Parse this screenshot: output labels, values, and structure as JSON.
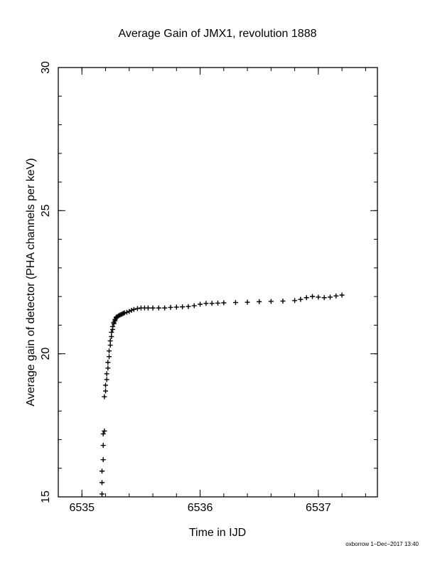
{
  "chart_data": {
    "type": "scatter",
    "title": "Average Gain of JMX1, revolution 1888",
    "xlabel": "Time in IJD",
    "ylabel": "Average gain of detector (PHA channels per keV)",
    "xlim": [
      6534.8,
      6537.5
    ],
    "ylim": [
      15,
      30
    ],
    "xticks": [
      6535,
      6536,
      6537
    ],
    "yticks": [
      15,
      20,
      25,
      30
    ],
    "x_minor_step": 0.2,
    "y_minor_step": 1,
    "grid": false,
    "marker": "plus",
    "series": [
      {
        "x": [
          6535.17,
          6535.17,
          6535.17,
          6535.18,
          6535.18,
          6535.18,
          6535.19,
          6535.19,
          6535.2,
          6535.2,
          6535.21,
          6535.21,
          6535.22,
          6535.22,
          6535.23,
          6535.23,
          6535.24,
          6535.24,
          6535.25,
          6535.25,
          6535.26,
          6535.26,
          6535.27,
          6535.27,
          6535.28,
          6535.28,
          6535.29,
          6535.29,
          6535.3,
          6535.31,
          6535.32,
          6535.33,
          6535.34,
          6535.35,
          6535.36,
          6535.38,
          6535.4,
          6535.42,
          6535.44,
          6535.47,
          6535.5,
          6535.53,
          6535.56,
          6535.6,
          6535.65,
          6535.7,
          6535.75,
          6535.8,
          6535.85,
          6535.9,
          6535.95,
          6536.0,
          6536.05,
          6536.1,
          6536.15,
          6536.2,
          6536.3,
          6536.4,
          6536.5,
          6536.6,
          6536.7,
          6536.8,
          6536.85,
          6536.9,
          6536.95,
          6537.0,
          6537.05,
          6537.1,
          6537.15,
          6537.2
        ],
        "y": [
          15.1,
          15.5,
          15.9,
          16.3,
          16.8,
          17.2,
          17.3,
          18.5,
          18.7,
          18.9,
          19.1,
          19.3,
          19.5,
          19.7,
          19.9,
          20.1,
          20.3,
          20.45,
          20.6,
          20.75,
          20.85,
          20.95,
          21.05,
          21.1,
          21.15,
          21.2,
          21.25,
          21.28,
          21.3,
          21.33,
          21.35,
          21.37,
          21.39,
          21.41,
          21.43,
          21.45,
          21.48,
          21.52,
          21.55,
          21.58,
          21.6,
          21.6,
          21.6,
          21.6,
          21.6,
          21.6,
          21.62,
          21.63,
          21.64,
          21.65,
          21.68,
          21.73,
          21.76,
          21.76,
          21.77,
          21.78,
          21.79,
          21.8,
          21.82,
          21.83,
          21.84,
          21.86,
          21.9,
          21.96,
          22.0,
          21.98,
          21.96,
          21.98,
          22.02,
          22.05
        ]
      }
    ]
  },
  "footer": {
    "credit": "oxborrow 1–Dec–2017 13:40"
  }
}
